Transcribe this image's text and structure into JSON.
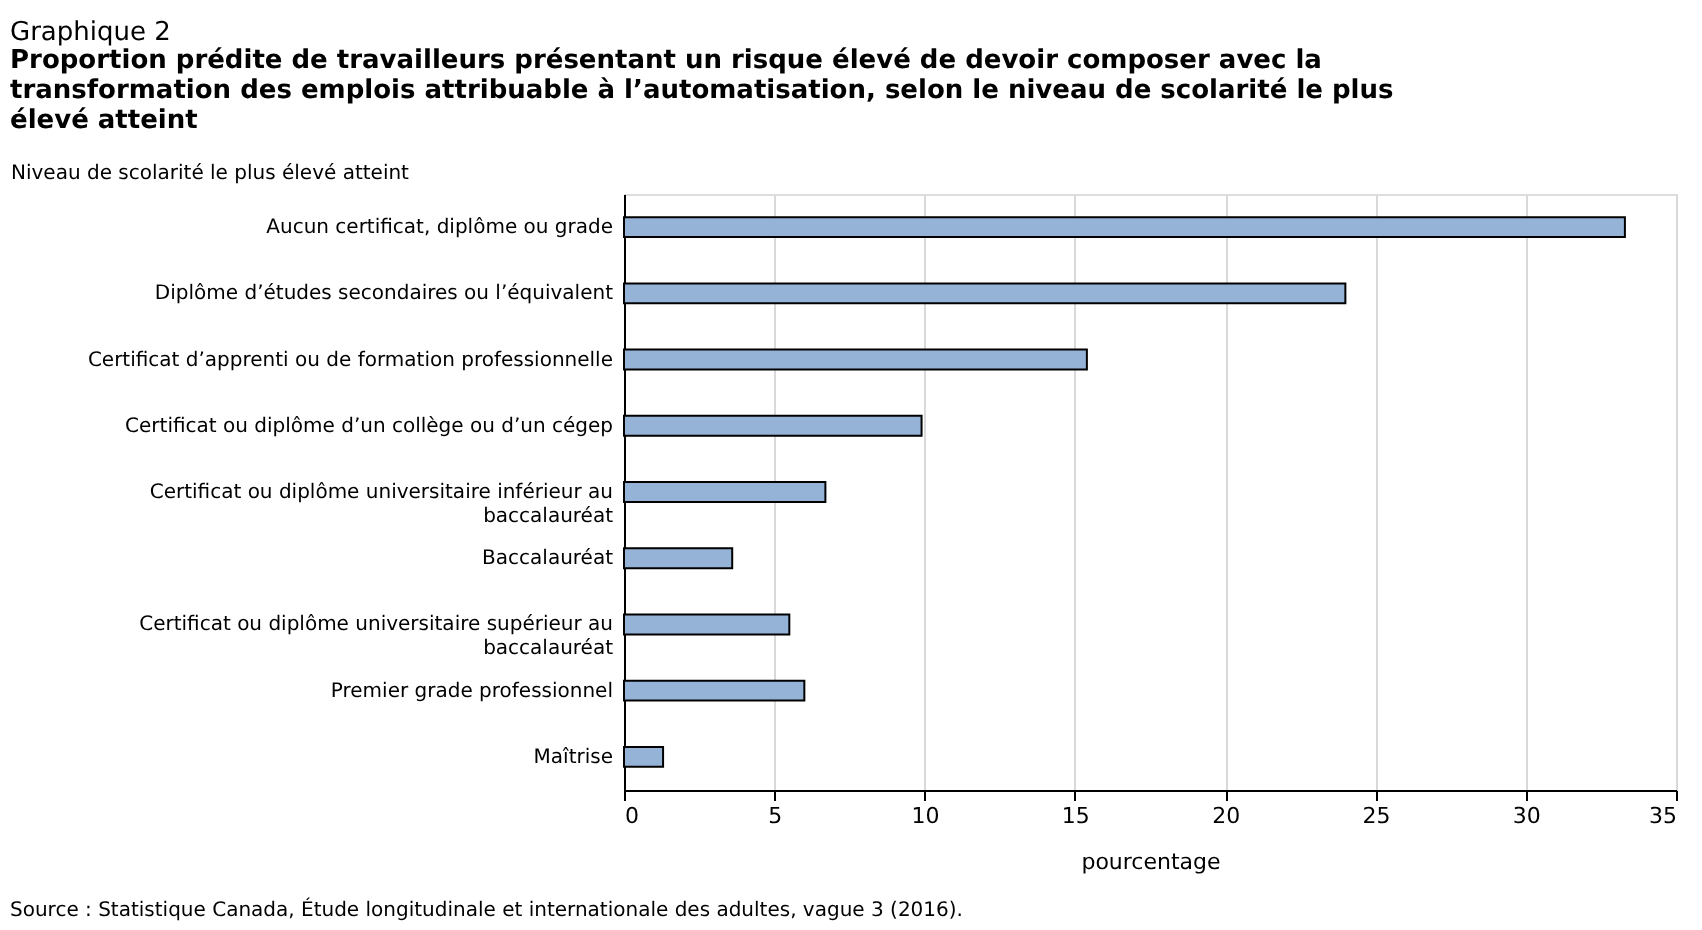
{
  "chart_data": {
    "type": "bar",
    "orientation": "horizontal",
    "title": "Graphique 2",
    "subtitle": "Proportion prédite de travailleurs présentant un risque élevé de devoir composer avec la transformation des emplois attribuable à l’automatisation, selon le niveau de scolarité le plus élevé atteint",
    "ylabel": "Niveau de scolarité le plus élevé atteint",
    "xlabel": "pourcentage",
    "categories": [
      "Aucun certificat, diplôme ou grade",
      "Diplôme d’études secondaires ou l’équivalent",
      "Certificat d’apprenti ou de formation professionnelle",
      "Certificat ou diplôme d’un collège ou d’un cégep",
      "Certificat ou diplôme universitaire inférieur au baccalauréat",
      "Baccalauréat",
      "Certificat ou diplôme universitaire supérieur au baccalauréat",
      "Premier grade professionnel",
      "Maîtrise"
    ],
    "values": [
      33.3,
      24.0,
      15.4,
      9.9,
      6.7,
      3.6,
      5.5,
      6.0,
      1.3
    ],
    "color": "#95b3d7",
    "xlim": [
      0,
      35
    ],
    "xticks": [
      0,
      5,
      10,
      15,
      20,
      25,
      30,
      35
    ],
    "grid": "x",
    "annotations": [
      "Source : Statistique Canada, Étude longitudinale et internationale des adultes, vague 3 (2016)."
    ]
  }
}
